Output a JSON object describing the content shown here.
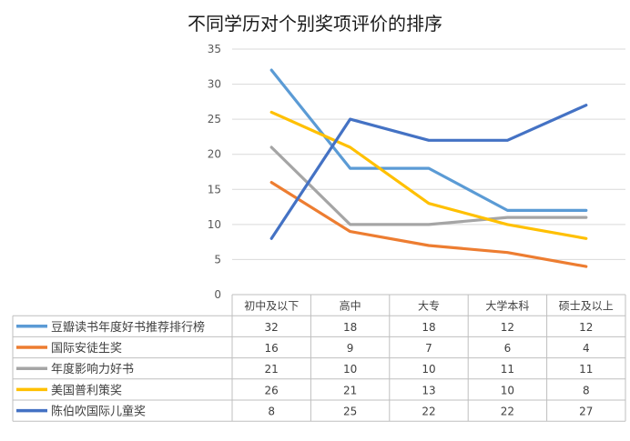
{
  "chart_data": {
    "type": "line",
    "title": "不同学历对个别奖项评价的排序",
    "categories": [
      "初中及以下",
      "高中",
      "大专",
      "大学本科",
      "硕士及以上"
    ],
    "ylim": [
      0,
      35
    ],
    "yticks": [
      "0",
      "5",
      "10",
      "15",
      "20",
      "25",
      "30",
      "35"
    ],
    "grid": true,
    "legend": "data-table",
    "series": [
      {
        "name": "豆瓣读书年度好书推荐排行榜",
        "color": "#5B9BD5",
        "values": [
          32,
          18,
          18,
          12,
          12
        ]
      },
      {
        "name": "国际安徒生奖",
        "color": "#ED7D31",
        "values": [
          16,
          9,
          7,
          6,
          4
        ]
      },
      {
        "name": "年度影响力好书",
        "color": "#A5A5A5",
        "values": [
          21,
          10,
          10,
          11,
          11
        ]
      },
      {
        "name": "美国普利策奖",
        "color": "#FFC000",
        "values": [
          26,
          21,
          13,
          10,
          8
        ]
      },
      {
        "name": "陈伯吹国际儿童奖",
        "color": "#4472C4",
        "values": [
          8,
          25,
          22,
          22,
          27
        ]
      }
    ]
  }
}
